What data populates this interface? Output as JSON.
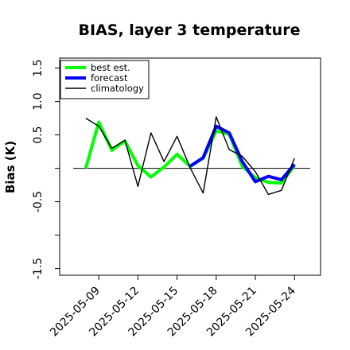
{
  "chart_data": {
    "type": "line",
    "title": "BIAS, layer 3 temperature",
    "ylabel": "Bias (K)",
    "xlabel": "",
    "ylim": [
      -1.6,
      1.65
    ],
    "xlim": [
      "2025-05-06",
      "2025-05-26"
    ],
    "yticks": [
      -1.5,
      -0.5,
      0.5,
      1.0,
      1.5
    ],
    "yticklabels": [
      "-1.5",
      "-0.5",
      "0.5",
      "1.0",
      "1.5"
    ],
    "xticks": [
      "2025-05-09",
      "2025-05-12",
      "2025-05-15",
      "2025-05-18",
      "2025-05-21",
      "2025-05-24"
    ],
    "xticklabels": [
      "2025-05-09",
      "2025-05-12",
      "2025-05-15",
      "2025-05-18",
      "2025-05-21",
      "2025-05-24"
    ],
    "xtick_colors": [
      "#000000",
      "#000000",
      "#008000",
      "#000000",
      "#000000",
      "#000000"
    ],
    "reference_line": 0,
    "grid": false,
    "legend_position": "top-left",
    "series": [
      {
        "name": "best est.",
        "color": "#00ff00",
        "x": [
          "2025-05-08",
          "2025-05-09",
          "2025-05-10",
          "2025-05-11",
          "2025-05-12",
          "2025-05-13",
          "2025-05-14",
          "2025-05-15",
          "2025-05-16",
          "2025-05-17",
          "2025-05-18",
          "2025-05-19",
          "2025-05-20",
          "2025-05-21",
          "2025-05-22",
          "2025-05-23",
          "2025-05-24"
        ],
        "values": [
          0.0,
          0.69,
          0.27,
          0.41,
          0.04,
          -0.13,
          0.02,
          0.21,
          0.03,
          0.15,
          0.56,
          0.51,
          0.03,
          -0.14,
          -0.21,
          -0.22,
          0.04
        ]
      },
      {
        "name": "forecast",
        "color": "#0000ff",
        "x": [
          "2025-05-16",
          "2025-05-17",
          "2025-05-18",
          "2025-05-19",
          "2025-05-20",
          "2025-05-21",
          "2025-05-22",
          "2025-05-23",
          "2025-05-24"
        ],
        "values": [
          0.03,
          0.16,
          0.63,
          0.53,
          0.1,
          -0.2,
          -0.12,
          -0.17,
          0.06
        ]
      },
      {
        "name": "climatology",
        "color": "#000000",
        "x": [
          "2025-05-08",
          "2025-05-09",
          "2025-05-10",
          "2025-05-11",
          "2025-05-12",
          "2025-05-13",
          "2025-05-14",
          "2025-05-15",
          "2025-05-16",
          "2025-05-17",
          "2025-05-18",
          "2025-05-19",
          "2025-05-20",
          "2025-05-21",
          "2025-05-22",
          "2025-05-23",
          "2025-05-24"
        ],
        "values": [
          0.75,
          0.63,
          0.3,
          0.42,
          -0.27,
          0.53,
          0.1,
          0.48,
          0.01,
          -0.37,
          0.77,
          0.28,
          0.18,
          -0.05,
          -0.39,
          -0.33,
          0.15
        ]
      }
    ]
  }
}
